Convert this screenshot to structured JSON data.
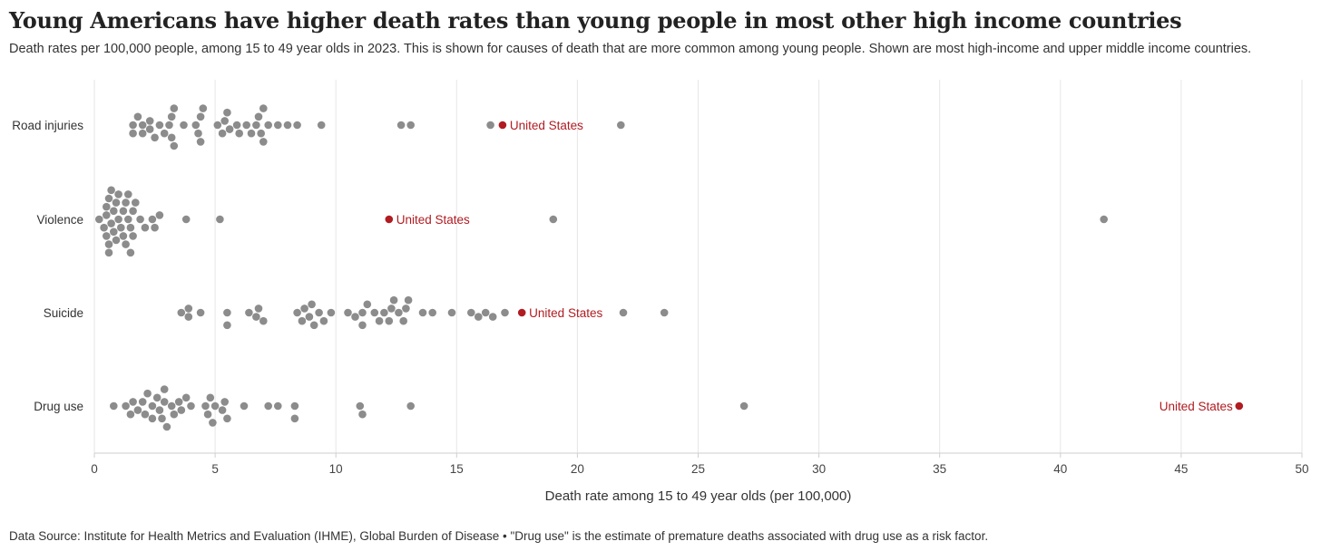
{
  "title": "Young Americans have higher death rates than young people in most other high income countries",
  "subtitle": "Death rates per 100,000 people, among 15 to 49 year olds in 2023. This is shown for causes of death that are more common among young people. Shown are most high-income and upper middle income countries.",
  "footer": "Data Source: Institute for Health Metrics and Evaluation (IHME), Global Burden of Disease • \"Drug use\" is the estimate of premature deaths associated with drug use as a risk factor.",
  "colors": {
    "dot": "#8c8c8c",
    "highlight": "#b01c22",
    "grid": "#e6e6e6",
    "axis": "#cfcfcf"
  },
  "chart_data": {
    "type": "scatter",
    "subtype": "beeswarm",
    "xlabel": "Death rate among 15 to 49 year olds (per 100,000)",
    "xlim": [
      0,
      50
    ],
    "xticks": [
      0,
      5,
      10,
      15,
      20,
      25,
      30,
      35,
      40,
      45,
      50
    ],
    "highlight_label": "United States",
    "categories": [
      "Road injuries",
      "Violence",
      "Suicide",
      "Drug use"
    ],
    "series": [
      {
        "name": "Road injuries",
        "values": [
          1.6,
          1.6,
          1.8,
          2.0,
          2.0,
          2.3,
          2.3,
          2.5,
          2.7,
          2.9,
          3.1,
          3.2,
          3.2,
          3.3,
          3.3,
          3.7,
          4.2,
          4.3,
          4.4,
          4.4,
          4.5,
          5.1,
          5.3,
          5.4,
          5.5,
          5.6,
          5.9,
          6.0,
          6.3,
          6.5,
          6.7,
          6.8,
          6.9,
          7.0,
          7.0,
          7.2,
          7.6,
          8.0,
          8.4,
          9.4,
          12.7,
          13.1,
          16.4,
          21.8
        ],
        "highlight": 16.9,
        "highlight_label_side": "right"
      },
      {
        "name": "Violence",
        "values": [
          0.2,
          0.4,
          0.5,
          0.5,
          0.5,
          0.6,
          0.6,
          0.6,
          0.7,
          0.7,
          0.8,
          0.8,
          0.9,
          0.9,
          1.0,
          1.0,
          1.1,
          1.2,
          1.2,
          1.3,
          1.3,
          1.4,
          1.4,
          1.5,
          1.5,
          1.6,
          1.6,
          1.7,
          1.9,
          2.1,
          2.4,
          2.5,
          2.7,
          3.8,
          5.2,
          19.0,
          41.8
        ],
        "highlight": 12.2,
        "highlight_label_side": "right"
      },
      {
        "name": "Suicide",
        "values": [
          3.6,
          3.9,
          3.9,
          4.4,
          5.5,
          5.5,
          6.4,
          6.7,
          6.8,
          7.0,
          8.4,
          8.6,
          8.7,
          8.9,
          9.0,
          9.1,
          9.3,
          9.5,
          9.8,
          10.5,
          10.8,
          11.1,
          11.1,
          11.3,
          11.6,
          11.8,
          12.0,
          12.2,
          12.3,
          12.4,
          12.6,
          12.8,
          12.9,
          13.0,
          13.6,
          14.0,
          14.8,
          15.6,
          15.9,
          16.2,
          16.5,
          17.0,
          21.9,
          23.6
        ],
        "highlight": 17.7,
        "highlight_label_side": "right"
      },
      {
        "name": "Drug use",
        "values": [
          0.8,
          1.3,
          1.5,
          1.6,
          1.8,
          2.0,
          2.1,
          2.2,
          2.4,
          2.4,
          2.6,
          2.7,
          2.8,
          2.9,
          2.9,
          3.0,
          3.2,
          3.3,
          3.5,
          3.6,
          3.8,
          4.0,
          4.6,
          4.7,
          4.8,
          4.9,
          5.0,
          5.3,
          5.4,
          5.5,
          6.2,
          7.2,
          7.6,
          8.3,
          8.3,
          11.0,
          11.1,
          13.1,
          26.9
        ],
        "highlight": 47.4,
        "highlight_label_side": "left"
      }
    ]
  }
}
